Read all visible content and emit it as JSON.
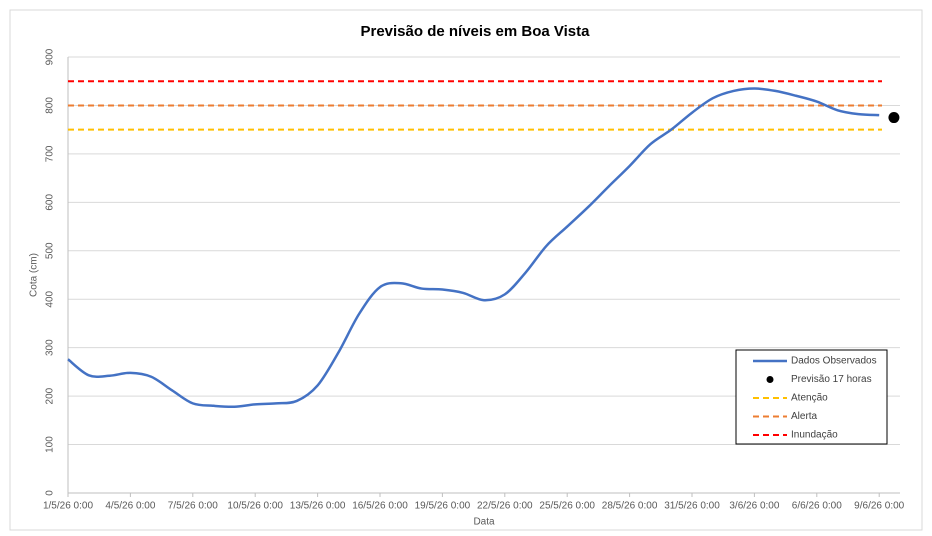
{
  "chart_data": {
    "type": "line",
    "title": "Previsão de níveis em Boa Vista",
    "x_label": "Data",
    "y_label": "Cota (cm)",
    "x": [
      "2026-05-01T00:00",
      "2026-05-02T00:00",
      "2026-05-03T00:00",
      "2026-05-04T00:00",
      "2026-05-05T00:00",
      "2026-05-06T00:00",
      "2026-05-07T00:00",
      "2026-05-08T00:00",
      "2026-05-09T00:00",
      "2026-05-10T00:00",
      "2026-05-11T00:00",
      "2026-05-12T00:00",
      "2026-05-13T00:00",
      "2026-05-14T00:00",
      "2026-05-15T00:00",
      "2026-05-16T00:00",
      "2026-05-17T00:00",
      "2026-05-18T00:00",
      "2026-05-19T00:00",
      "2026-05-20T00:00",
      "2026-05-21T00:00",
      "2026-05-22T00:00",
      "2026-05-23T00:00",
      "2026-05-24T00:00",
      "2026-05-25T00:00",
      "2026-05-26T00:00",
      "2026-05-27T00:00",
      "2026-05-28T00:00",
      "2026-05-29T00:00",
      "2026-05-30T00:00",
      "2026-05-31T00:00",
      "2026-06-01T00:00",
      "2026-06-02T00:00",
      "2026-06-03T00:00",
      "2026-06-04T00:00",
      "2026-06-05T00:00",
      "2026-06-06T00:00",
      "2026-06-07T00:00",
      "2026-06-08T00:00",
      "2026-06-09T00:00"
    ],
    "series": [
      {
        "name": "Dados Observados",
        "color": "#4472c4",
        "values": [
          276,
          243,
          242,
          248,
          240,
          212,
          185,
          180,
          178,
          183,
          185,
          190,
          222,
          290,
          370,
          425,
          433,
          422,
          420,
          413,
          398,
          410,
          455,
          510,
          550,
          590,
          633,
          675,
          720,
          750,
          785,
          815,
          830,
          835,
          830,
          820,
          808,
          790,
          782,
          780
        ]
      }
    ],
    "forecast": {
      "name": "Previsão 17 horas",
      "color": "#000000",
      "x": "2026-06-09T17:00",
      "value": 775
    },
    "thresholds": [
      {
        "name": "Atenção",
        "color": "#ffc000",
        "value": 750
      },
      {
        "name": "Alerta",
        "color": "#ed7d31",
        "value": 800
      },
      {
        "name": "Inundação",
        "color": "#ff0000",
        "value": 850
      }
    ],
    "xlim": [
      "2026-05-01T00:00",
      "2026-06-10T00:00"
    ],
    "xticks": [
      {
        "value": "2026-05-01T00:00",
        "label": "1/5/26 0:00"
      },
      {
        "value": "2026-05-04T00:00",
        "label": "4/5/26 0:00"
      },
      {
        "value": "2026-05-07T00:00",
        "label": "7/5/26 0:00"
      },
      {
        "value": "2026-05-10T00:00",
        "label": "10/5/26 0:00"
      },
      {
        "value": "2026-05-13T00:00",
        "label": "13/5/26 0:00"
      },
      {
        "value": "2026-05-16T00:00",
        "label": "16/5/26 0:00"
      },
      {
        "value": "2026-05-19T00:00",
        "label": "19/5/26 0:00"
      },
      {
        "value": "2026-05-22T00:00",
        "label": "22/5/26 0:00"
      },
      {
        "value": "2026-05-25T00:00",
        "label": "25/5/26 0:00"
      },
      {
        "value": "2026-05-28T00:00",
        "label": "28/5/26 0:00"
      },
      {
        "value": "2026-05-31T00:00",
        "label": "31/5/26 0:00"
      },
      {
        "value": "2026-06-03T00:00",
        "label": "3/6/26 0:00"
      },
      {
        "value": "2026-06-06T00:00",
        "label": "6/6/26 0:00"
      },
      {
        "value": "2026-06-09T00:00",
        "label": "9/6/26 0:00"
      }
    ],
    "ylim": [
      0,
      900
    ],
    "yticks": [
      0,
      100,
      200,
      300,
      400,
      500,
      600,
      700,
      800,
      900
    ],
    "grid": true,
    "legend": "lower right"
  }
}
